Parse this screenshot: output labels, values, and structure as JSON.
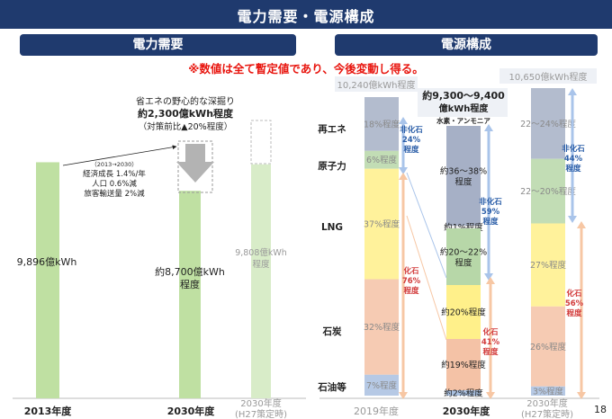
{
  "title": "電力需要・電源構成",
  "notice": "※数値は全て暫定値であり、今後変動し得る。",
  "page_number": "18",
  "colors": {
    "navy": "#1f3a6e",
    "red": "#e8150e",
    "demand_green": "#bfe0a2",
    "renew": "#a6b0c6",
    "nuclear": "#b7d7a8",
    "lng": "#fff08a",
    "coal": "#f4c2a6",
    "oil": "#a9c0e0",
    "blue_arrow": "#a9c4ea",
    "orange_arrow": "#f7c7a4"
  },
  "left_panel": {
    "heading": "電力需要",
    "savings_note": {
      "line1": "省エネの野心的な深掘り",
      "line2": "約2,300億kWh程度",
      "line3": "（対策前比▲20%程度）"
    },
    "growth_note": {
      "period": "（2013→2030）",
      "items": [
        "経済成長 1.4%/年",
        "人口 0.6%減",
        "旅客輸送量 2%減"
      ]
    },
    "bars": [
      {
        "category": "2013年度",
        "value": 9896,
        "label": "9,896億kWh"
      },
      {
        "category": "2030年度",
        "value": 8700,
        "label_line1": "約8,700億kWh",
        "label_line2": "程度"
      },
      {
        "category_line1": "2030年度",
        "category_line2": "(H27策定時)",
        "value": 9808,
        "label_line1": "9,808億kWh",
        "label_line2": "程度"
      }
    ]
  },
  "right_panel": {
    "heading": "電源構成",
    "row_labels": [
      "再エネ",
      "原子力",
      "LNG",
      "石炭",
      "石油等"
    ],
    "totals": {
      "y2019": "10,240億kWh程度",
      "y2030_line1": "約9,300～9,400",
      "y2030_line2": "億kWh程度",
      "y2030_h27": "10,650億kWh程度"
    },
    "hydrogen_note": "水素・アンモニア",
    "x_labels": {
      "y2019": "2019年度",
      "y2030": "2030年度",
      "y2030_h27_line1": "2030年度",
      "y2030_h27_line2": "(H27策定時)"
    },
    "bracket_labels": {
      "y2019_nonfossil": {
        "l1": "非化石",
        "l2": "24%",
        "l3": "程度"
      },
      "y2019_fossil": {
        "l1": "化石",
        "l2": "76%",
        "l3": "程度"
      },
      "y2030_nonfossil": {
        "l1": "非化石",
        "l2": "59%",
        "l3": "程度"
      },
      "y2030_fossil": {
        "l1": "化石",
        "l2": "41%",
        "l3": "程度"
      },
      "h27_nonfossil": {
        "l1": "非化石",
        "l2": "44%",
        "l3": "程度"
      },
      "h27_fossil": {
        "l1": "化石",
        "l2": "56%",
        "l3": "程度"
      }
    }
  },
  "chart_data": [
    {
      "type": "bar",
      "title": "電力需要",
      "categories": [
        "2013年度",
        "2030年度",
        "2030年度(H27策定時)"
      ],
      "values": [
        9896,
        8700,
        9808
      ],
      "unit": "億kWh",
      "annotation": "省エネの野心的な深掘り 約2,300億kWh程度（対策前比▲20%程度）"
    },
    {
      "type": "bar",
      "stacked": true,
      "title": "電源構成",
      "categories": [
        "2019年度",
        "2030年度",
        "2030年度(H27策定時)"
      ],
      "series": [
        {
          "name": "再エネ",
          "values": [
            18,
            37,
            23
          ]
        },
        {
          "name": "水素・アンモニア",
          "values": [
            0,
            1,
            0
          ]
        },
        {
          "name": "原子力",
          "values": [
            6,
            21,
            21
          ]
        },
        {
          "name": "LNG",
          "values": [
            37,
            20,
            27
          ]
        },
        {
          "name": "石炭",
          "values": [
            32,
            19,
            26
          ]
        },
        {
          "name": "石油等",
          "values": [
            7,
            2,
            3
          ]
        }
      ],
      "segment_labels": [
        [
          "18%程度",
          "6%程度",
          "37%程度",
          "32%程度",
          "7%程度"
        ],
        [
          "約36～38%程度",
          "約1%程度",
          "約20～22%程度",
          "約20%程度",
          "約19%程度",
          "約2%程度"
        ],
        [
          "22～24%程度",
          "22～20%程度",
          "27%程度",
          "26%程度",
          "3%程度"
        ]
      ],
      "unit": "%"
    }
  ]
}
